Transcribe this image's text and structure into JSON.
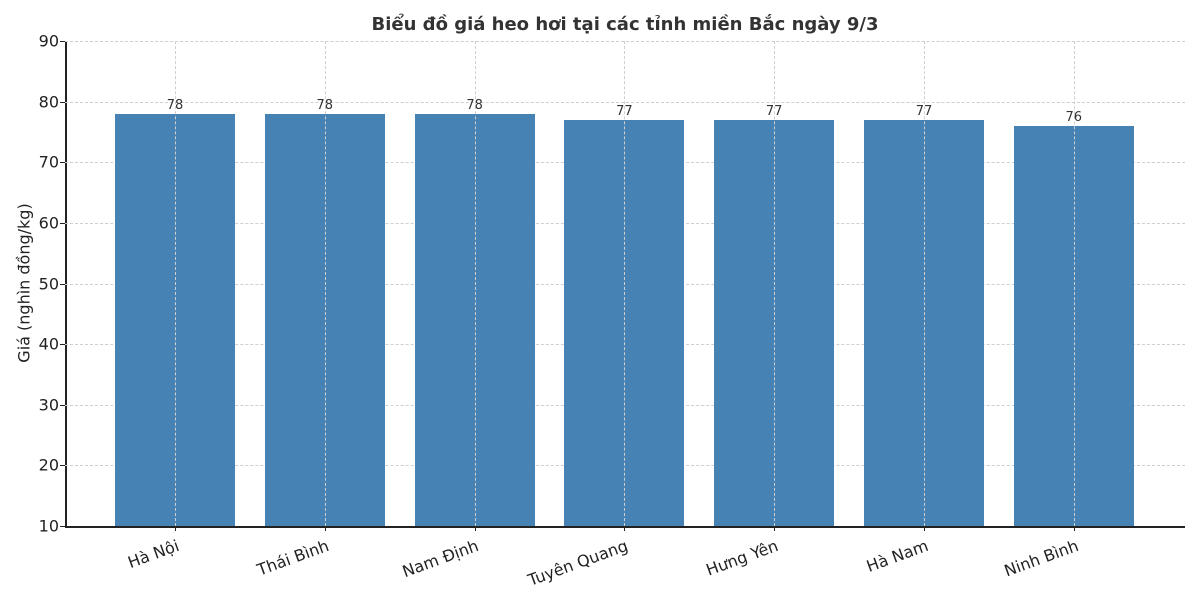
{
  "chart_data": {
    "type": "bar",
    "title": "Biểu đồ giá heo hơi tại các tỉnh miền Bắc ngày 9/3",
    "xlabel": "",
    "ylabel": "Giá (nghìn đồng/kg)",
    "ylim": [
      10,
      90
    ],
    "yticks": [
      "10",
      "20",
      "30",
      "40",
      "50",
      "60",
      "70",
      "80",
      "90"
    ],
    "grid": true,
    "legend": null,
    "bar_color": "#4682b4",
    "categories": [
      "Hà Nội",
      "Thái Bình",
      "Nam Định",
      "Tuyên Quang",
      "Hưng Yên",
      "Hà Nam",
      "Ninh Bình"
    ],
    "values": [
      78,
      78,
      78,
      77,
      77,
      77,
      76
    ],
    "data_labels": [
      "78",
      "78",
      "78",
      "77",
      "77",
      "77",
      "76"
    ]
  }
}
